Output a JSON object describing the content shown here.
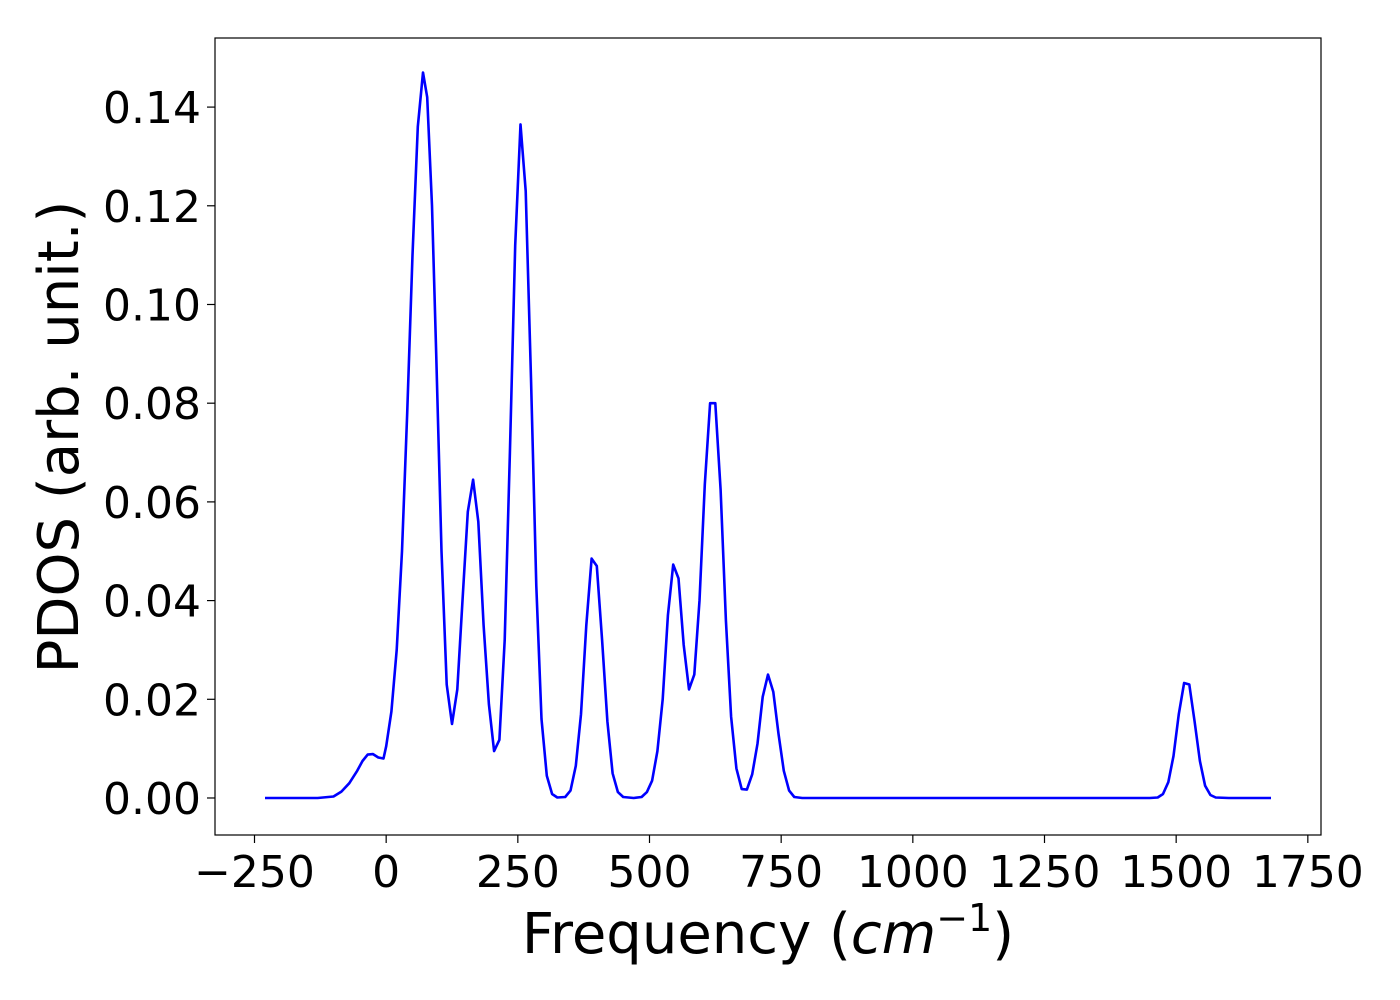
{
  "chart_data": {
    "type": "line",
    "title": "",
    "xlabel": "Frequency (",
    "xlabel_math": "cm",
    "xlabel_sup": "−1",
    "xlabel_close": ")",
    "ylabel": "PDOS (arb. unit.)",
    "xlim": [
      -325,
      1775
    ],
    "ylim": [
      -0.0075,
      0.154
    ],
    "grid": false,
    "legend": "none",
    "xticks": [
      -250,
      0,
      250,
      500,
      750,
      1000,
      1250,
      1500,
      1750
    ],
    "xtick_labels": [
      "−250",
      "0",
      "250",
      "500",
      "750",
      "1000",
      "1250",
      "1500",
      "1750"
    ],
    "yticks": [
      0.0,
      0.02,
      0.04,
      0.06,
      0.08,
      0.1,
      0.12,
      0.14
    ],
    "ytick_labels": [
      "0.00",
      "0.02",
      "0.04",
      "0.06",
      "0.08",
      "0.10",
      "0.12",
      "0.14"
    ],
    "series": [
      {
        "color": "#0000ff",
        "points": [
          [
            -230,
            0.0
          ],
          [
            -180,
            0.0
          ],
          [
            -130,
            0.0
          ],
          [
            -100,
            0.0003
          ],
          [
            -85,
            0.0013
          ],
          [
            -70,
            0.003
          ],
          [
            -55,
            0.0055
          ],
          [
            -45,
            0.0075
          ],
          [
            -35,
            0.0088
          ],
          [
            -25,
            0.0089
          ],
          [
            -15,
            0.0082
          ],
          [
            -5,
            0.008
          ],
          [
            0,
            0.0105
          ],
          [
            10,
            0.0175
          ],
          [
            20,
            0.03
          ],
          [
            30,
            0.05
          ],
          [
            40,
            0.078
          ],
          [
            50,
            0.11
          ],
          [
            60,
            0.136
          ],
          [
            70,
            0.147
          ],
          [
            78,
            0.142
          ],
          [
            87,
            0.12
          ],
          [
            95,
            0.09
          ],
          [
            105,
            0.05
          ],
          [
            115,
            0.023
          ],
          [
            125,
            0.015
          ],
          [
            135,
            0.022
          ],
          [
            145,
            0.04
          ],
          [
            155,
            0.058
          ],
          [
            165,
            0.0645
          ],
          [
            175,
            0.056
          ],
          [
            185,
            0.035
          ],
          [
            195,
            0.019
          ],
          [
            205,
            0.0095
          ],
          [
            215,
            0.0118
          ],
          [
            225,
            0.032
          ],
          [
            235,
            0.07
          ],
          [
            245,
            0.112
          ],
          [
            255,
            0.1365
          ],
          [
            265,
            0.123
          ],
          [
            275,
            0.085
          ],
          [
            285,
            0.043
          ],
          [
            295,
            0.016
          ],
          [
            305,
            0.0045
          ],
          [
            315,
            0.0008
          ],
          [
            325,
            0.0001
          ],
          [
            340,
            0.0002
          ],
          [
            350,
            0.0015
          ],
          [
            360,
            0.0065
          ],
          [
            370,
            0.017
          ],
          [
            380,
            0.035
          ],
          [
            390,
            0.0485
          ],
          [
            400,
            0.047
          ],
          [
            410,
            0.032
          ],
          [
            420,
            0.0155
          ],
          [
            430,
            0.005
          ],
          [
            440,
            0.0012
          ],
          [
            450,
            0.0002
          ],
          [
            470,
            0.0
          ],
          [
            485,
            0.0002
          ],
          [
            495,
            0.0012
          ],
          [
            505,
            0.0035
          ],
          [
            515,
            0.0095
          ],
          [
            525,
            0.02
          ],
          [
            535,
            0.037
          ],
          [
            545,
            0.0473
          ],
          [
            555,
            0.0445
          ],
          [
            565,
            0.031
          ],
          [
            575,
            0.022
          ],
          [
            585,
            0.025
          ],
          [
            595,
            0.04
          ],
          [
            605,
            0.0635
          ],
          [
            615,
            0.08
          ],
          [
            625,
            0.08
          ],
          [
            635,
            0.0625
          ],
          [
            645,
            0.036
          ],
          [
            655,
            0.0165
          ],
          [
            665,
            0.006
          ],
          [
            675,
            0.0018
          ],
          [
            685,
            0.0017
          ],
          [
            695,
            0.0048
          ],
          [
            705,
            0.011
          ],
          [
            715,
            0.0205
          ],
          [
            725,
            0.025
          ],
          [
            735,
            0.0215
          ],
          [
            745,
            0.013
          ],
          [
            755,
            0.0055
          ],
          [
            765,
            0.0015
          ],
          [
            775,
            0.0002
          ],
          [
            790,
            0.0
          ],
          [
            900,
            0.0
          ],
          [
            1100,
            0.0
          ],
          [
            1300,
            0.0
          ],
          [
            1450,
            0.0
          ],
          [
            1465,
            0.0001
          ],
          [
            1475,
            0.0008
          ],
          [
            1485,
            0.0032
          ],
          [
            1495,
            0.0085
          ],
          [
            1505,
            0.017
          ],
          [
            1515,
            0.0233
          ],
          [
            1525,
            0.023
          ],
          [
            1535,
            0.0155
          ],
          [
            1545,
            0.0075
          ],
          [
            1555,
            0.0025
          ],
          [
            1565,
            0.0006
          ],
          [
            1575,
            0.0001
          ],
          [
            1600,
            0.0
          ],
          [
            1680,
            0.0
          ]
        ]
      }
    ]
  }
}
